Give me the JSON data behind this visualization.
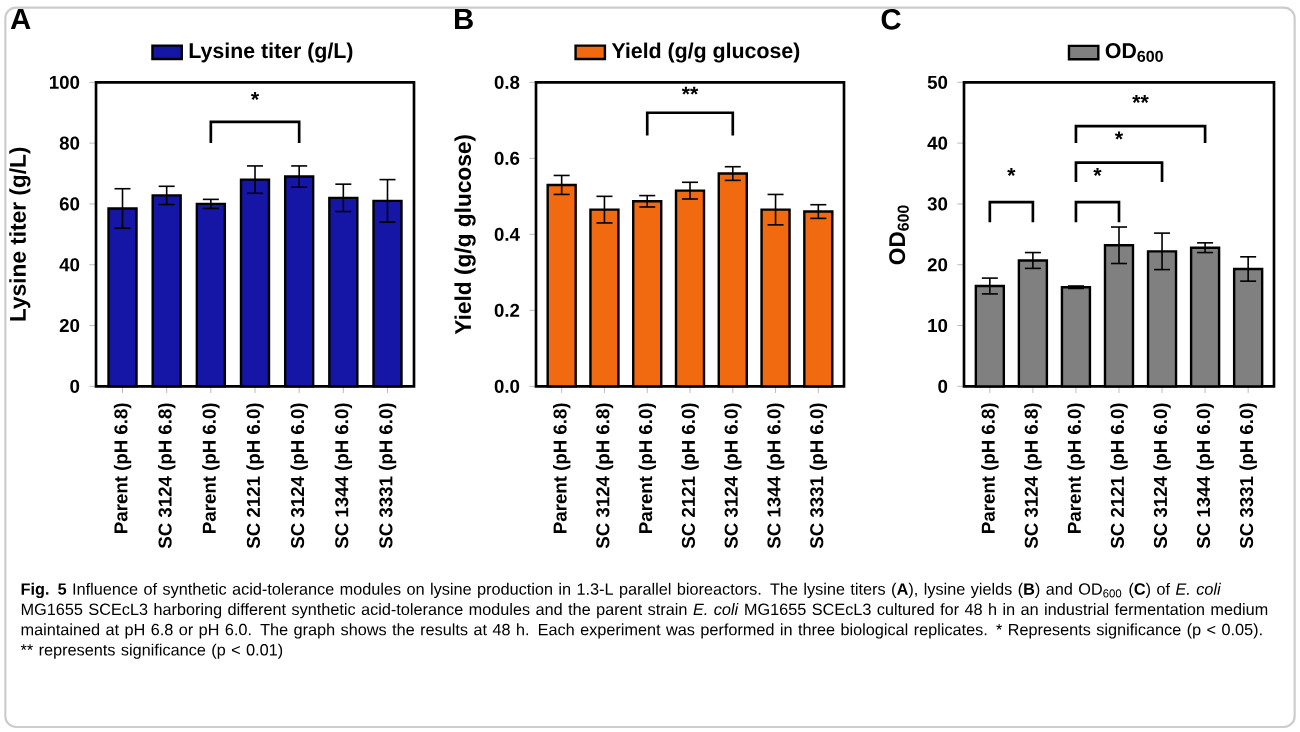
{
  "chart_data": [
    {
      "type": "bar",
      "title": "A",
      "ylabel": "Lysine titer (g/L)",
      "categories": [
        "Parent (pH 6.8)",
        "SC 3124 (pH 6.8)",
        "Parent (pH 6.0)",
        "SC 2121 (pH 6.0)",
        "SC 3124 (pH 6.0)",
        "SC 1344 (pH 6.0)",
        "SC 3331 (pH 6.0)"
      ],
      "series": [
        {
          "name": "Lysine titer (g/L)",
          "color": "#1616a6",
          "values": [
            58.5,
            62.8,
            60,
            68,
            69,
            62,
            61
          ],
          "errors": [
            6.5,
            3,
            1.5,
            4.5,
            3.5,
            4.5,
            7
          ]
        }
      ],
      "ylim": [
        0,
        100
      ],
      "yticks": [
        0,
        20,
        40,
        60,
        80,
        100
      ],
      "legend": "top",
      "annotations": [
        "*",
        "**Fig. 5** Influence of synthetic acid-tolerance modules on lysine production in 1.3-L parallel bioreactors. The lysine titers (**A**), lysine yields (**B**) and OD$_{600}$ (**C**) of *E. coli* MG1655 SCEcL3 harboring different synthetic acid-tolerance modules and the parent strain *E. coli* MG1655 SCEcL3 cultured for 48 h in an industrial fermentation medium maintained at pH 6.8 or pH 6.0. The graph shows the results at 48 h. Each experiment was performed in three biological replicates. * Represents significance (p < 0.05). ** represents significance (p < 0.01)"
      ]
    },
    {
      "type": "bar",
      "title": "B",
      "ylabel": "Yield (g/g glucose)",
      "categories": [
        "Parent (pH 6.8)",
        "SC 3124 (pH 6.8)",
        "Parent (pH 6.0)",
        "SC 2121 (pH 6.0)",
        "SC 3124 (pH 6.0)",
        "SC 1344 (pH 6.0)",
        "SC 3331 (pH 6.0)"
      ],
      "series": [
        {
          "name": "Yield (g/g glucose)",
          "color": "#f26a10",
          "values": [
            0.53,
            0.465,
            0.487,
            0.515,
            0.56,
            0.465,
            0.46
          ],
          "errors": [
            0.025,
            0.035,
            0.015,
            0.022,
            0.018,
            0.04,
            0.018
          ]
        }
      ],
      "ylim": [
        0,
        0.8
      ],
      "yticks": [
        {
          "value": 0,
          "label": "0.0"
        },
        0.2,
        0.4,
        0.6,
        0.8
      ],
      "legend": "top",
      "annotations": [
        "**"
      ]
    },
    {
      "type": "bar",
      "title": "C",
      "ylabel": "OD$_{600}$",
      "categories": [
        "Parent (pH 6.8)",
        "SC 3124 (pH 6.8)",
        "Parent (pH 6.0)",
        "SC 2121 (pH 6.0)",
        "SC 3124 (pH 6.0)",
        "SC 1344 (pH 6.0)",
        "SC 3331 (pH 6.0)"
      ],
      "series": [
        {
          "name": "OD$_{600}$",
          "color": "#808080",
          "values": [
            16.5,
            20.7,
            16.3,
            23.2,
            22.2,
            22.8,
            19.3
          ],
          "errors": [
            1.3,
            1.3,
            0.2,
            3,
            3,
            0.8,
            2
          ]
        }
      ],
      "ylim": [
        0,
        50
      ],
      "yticks": [
        0,
        10,
        20,
        30,
        40,
        50
      ],
      "legend": "top",
      "annotations": [
        "*",
        "*",
        "*",
        "**"
      ]
    }
  ]
}
